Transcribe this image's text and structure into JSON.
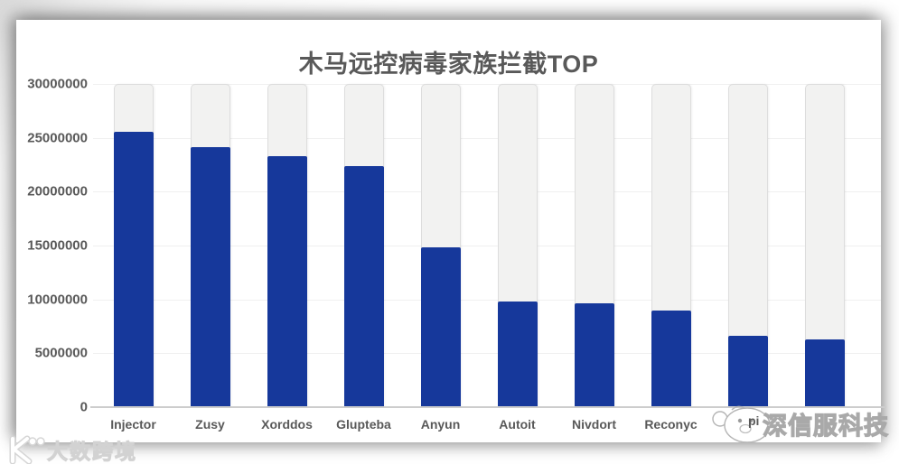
{
  "chart_data": {
    "type": "bar",
    "title": "木马远控病毒家族拦截TOP",
    "categories": [
      "Injector",
      "Zusy",
      "Xorddos",
      "Glupteba",
      "Anyun",
      "Autoit",
      "Nivdort",
      "Reconyc",
      "",
      ""
    ],
    "values": [
      25600000,
      24200000,
      23400000,
      22400000,
      14900000,
      9800000,
      9700000,
      9000000,
      6600000,
      6300000
    ],
    "xlabel": "",
    "ylabel": "",
    "ylim": [
      0,
      30000000
    ],
    "y_ticks": [
      "30000000",
      "25000000",
      "20000000",
      "15000000",
      "10000000",
      "5000000",
      "0"
    ],
    "grid": true,
    "legend": false,
    "bar_color": "#16389b",
    "track_color": "#f2f2f1",
    "axis_text_color": "#595959"
  },
  "watermarks": {
    "bottom_right": {
      "logo": "sangfor-mascot-logo",
      "text": "深信服科技",
      "obscured_label_fragment": "pi"
    },
    "bottom_left": {
      "logo": "k-double-o-logo",
      "text": "大数跨境"
    }
  }
}
